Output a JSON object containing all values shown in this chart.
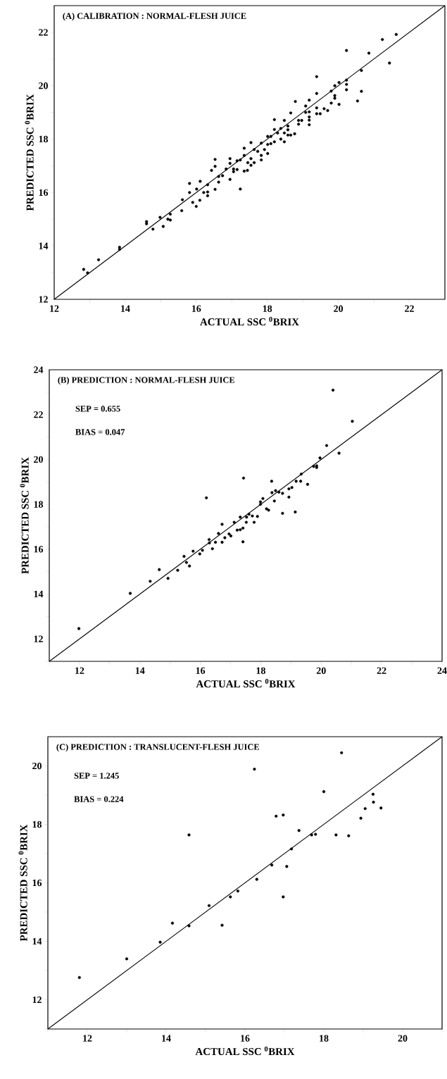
{
  "chart_data": [
    {
      "type": "scatter",
      "title": "(A) CALIBRATION : NORMAL-FLESH JUICE",
      "xlabel": "ACTUAL SSC $^{0}$BRIX",
      "ylabel": "PREDICTED SSC $^{0}$BRIX",
      "marker": "circle",
      "xlim": [
        12,
        23
      ],
      "ylim": [
        12,
        23
      ],
      "xticks": [
        12,
        {
          "value": 13,
          "label": null
        },
        14,
        {
          "value": 15,
          "label": null
        },
        16,
        {
          "value": 17,
          "label": null
        },
        18,
        {
          "value": 19,
          "label": null
        },
        20,
        {
          "value": 21,
          "label": null
        },
        22
      ],
      "yticks": [
        12,
        {
          "value": 13,
          "label": null
        },
        14,
        {
          "value": 15,
          "label": null
        },
        16,
        {
          "value": 17,
          "label": null
        },
        18,
        {
          "value": 19,
          "label": null
        },
        20,
        {
          "value": 21,
          "label": null
        },
        22
      ],
      "series": [
        {
          "color": "#000000",
          "x": [
            12.83,
            12.94,
            13.25,
            13.84,
            13.84,
            14.6,
            14.6,
            14.78,
            14.98,
            15.07,
            15.2,
            15.27,
            15.27,
            15.59,
            15.61,
            15.81,
            15.81,
            15.9,
            16.0,
            16.01,
            16.1,
            16.11,
            16.21,
            16.32,
            16.32,
            16.32,
            16.43,
            16.53,
            16.53,
            16.53,
            16.63,
            16.63,
            16.74,
            16.84,
            16.95,
            16.95,
            16.95,
            17.05,
            17.05,
            17.15,
            17.15,
            17.24,
            17.24,
            17.35,
            17.35,
            17.35,
            17.44,
            17.45,
            17.54,
            17.54,
            17.54,
            17.63,
            17.63,
            17.73,
            17.83,
            17.83,
            17.83,
            17.92,
            18.01,
            18.01,
            18.01,
            18.1,
            18.1,
            18.2,
            18.2,
            18.2,
            18.29,
            18.38,
            18.38,
            18.48,
            18.48,
            18.48,
            18.58,
            18.58,
            18.58,
            18.66,
            18.66,
            18.77,
            18.79,
            18.88,
            18.88,
            18.97,
            19.08,
            19.08,
            19.18,
            19.18,
            19.18,
            19.18,
            19.18,
            19.39,
            19.39,
            19.39,
            19.39,
            19.49,
            19.6,
            19.7,
            19.8,
            19.8,
            19.9,
            19.9,
            19.9,
            20.02,
            20.02,
            20.23,
            20.23,
            20.23,
            20.23,
            20.54,
            20.65,
            20.65,
            20.86,
            21.24,
            21.44,
            21.63
          ],
          "values": [
            13.12,
            12.99,
            13.48,
            13.95,
            13.87,
            14.91,
            14.83,
            14.63,
            15.07,
            14.73,
            15.0,
            14.97,
            15.19,
            15.32,
            15.73,
            16.0,
            16.34,
            15.63,
            15.48,
            16.13,
            15.71,
            16.42,
            16.0,
            16.02,
            15.88,
            16.29,
            16.83,
            16.98,
            17.24,
            16.12,
            16.39,
            16.6,
            16.63,
            16.88,
            17.27,
            17.09,
            16.49,
            16.78,
            16.88,
            16.86,
            17.19,
            17.22,
            16.13,
            17.39,
            17.66,
            16.8,
            16.83,
            17.12,
            17.87,
            17.27,
            17.02,
            17.61,
            17.12,
            17.54,
            17.85,
            17.39,
            17.22,
            17.61,
            17.8,
            18.1,
            17.46,
            18.1,
            17.83,
            18.73,
            18.36,
            17.9,
            18.23,
            18.4,
            18.0,
            18.7,
            18.23,
            17.9,
            18.49,
            18.35,
            18.15,
            18.98,
            18.15,
            18.2,
            19.41,
            18.56,
            18.7,
            18.7,
            19.24,
            19.0,
            19.46,
            19.02,
            18.83,
            18.71,
            18.54,
            20.34,
            19.71,
            19.17,
            18.95,
            18.95,
            19.14,
            19.07,
            19.35,
            19.8,
            20.0,
            19.63,
            19.53,
            20.12,
            19.3,
            21.32,
            20.21,
            20.05,
            19.85,
            19.43,
            20.57,
            19.79,
            21.22,
            21.73,
            20.85,
            21.92
          ]
        },
        {
          "type": "line",
          "color": "#000000",
          "x": [
            12,
            23
          ],
          "values": [
            12,
            23
          ],
          "marker": "none"
        }
      ]
    },
    {
      "type": "scatter",
      "title": "(B)  PREDICTION : NORMAL-FLESH JUICE",
      "xlabel": "ACTUAL SSC $^{0}$BRIX",
      "ylabel": "PREDICTED SSC $^{0}$BRIX",
      "marker": "circle",
      "annotations": [
        "SEP = 0.655",
        "BIAS = 0.047"
      ],
      "xlim": [
        11,
        24
      ],
      "ylim": [
        11,
        24
      ],
      "xticks": [
        {
          "value": 11,
          "label": null
        },
        12,
        {
          "value": 13,
          "label": null
        },
        14,
        {
          "value": 15,
          "label": null
        },
        16,
        {
          "value": 17,
          "label": null
        },
        18,
        {
          "value": 19,
          "label": null
        },
        20,
        {
          "value": 21,
          "label": null
        },
        22,
        {
          "value": 23,
          "label": null
        },
        24
      ],
      "yticks": [
        {
          "value": 11,
          "label": null
        },
        12,
        {
          "value": 13,
          "label": null
        },
        14,
        {
          "value": 15,
          "label": null
        },
        16,
        {
          "value": 17,
          "label": null
        },
        18,
        {
          "value": 19,
          "label": null
        },
        20,
        {
          "value": 21,
          "label": null
        },
        22,
        {
          "value": 23,
          "label": null
        },
        24
      ],
      "series": [
        {
          "color": "#000000",
          "x": [
            11.98,
            13.68,
            14.34,
            14.64,
            14.93,
            15.25,
            15.46,
            15.54,
            15.64,
            15.76,
            15.98,
            16.07,
            16.2,
            16.29,
            16.3,
            16.4,
            16.5,
            16.6,
            16.72,
            16.72,
            16.81,
            16.95,
            17.01,
            17.12,
            17.22,
            17.32,
            17.32,
            17.41,
            17.41,
            17.43,
            17.52,
            17.53,
            17.61,
            17.72,
            17.78,
            17.89,
            17.99,
            17.99,
            18.07,
            18.19,
            18.26,
            18.36,
            18.37,
            18.45,
            18.49,
            18.6,
            18.72,
            18.72,
            18.93,
            18.93,
            19.03,
            19.14,
            19.17,
            19.32,
            19.34,
            19.55,
            19.75,
            19.85,
            19.85,
            19.96,
            20.18,
            20.39,
            20.59,
            21.03
          ],
          "values": [
            12.46,
            14.03,
            14.57,
            15.09,
            14.7,
            15.06,
            15.68,
            15.41,
            15.25,
            15.91,
            15.79,
            15.95,
            18.29,
            16.43,
            16.28,
            16.02,
            16.31,
            16.7,
            17.11,
            16.31,
            16.51,
            16.68,
            16.59,
            17.2,
            16.85,
            17.43,
            16.87,
            16.94,
            16.33,
            19.17,
            17.2,
            17.43,
            17.56,
            17.48,
            17.2,
            17.46,
            18.0,
            18.11,
            18.26,
            17.8,
            17.74,
            19.03,
            18.52,
            18.15,
            18.61,
            18.54,
            18.49,
            17.6,
            18.69,
            18.32,
            18.75,
            17.66,
            19.03,
            19.03,
            19.35,
            18.89,
            19.69,
            19.72,
            19.64,
            20.07,
            20.62,
            23.09,
            20.28,
            21.7
          ]
        },
        {
          "type": "line",
          "color": "#000000",
          "x": [
            11,
            24
          ],
          "values": [
            11,
            24
          ],
          "marker": "none"
        }
      ]
    },
    {
      "type": "scatter",
      "title": "(C)  PREDICTION : TRANSLUCENT-FLESH JUICE",
      "xlabel": "ACTUAL SSC $^{0}$BRIX",
      "ylabel": "PREDICTED SSC $^{0}$BRIX",
      "marker": "circle",
      "annotations": [
        "SEP = 1.245",
        "BIAS = 0.224"
      ],
      "xlim": [
        11,
        21
      ],
      "ylim": [
        11,
        21
      ],
      "xticks": [
        {
          "value": 11,
          "label": null
        },
        12,
        {
          "value": 13,
          "label": null
        },
        14,
        {
          "value": 15,
          "label": null
        },
        16,
        {
          "value": 17,
          "label": null
        },
        18,
        {
          "value": 19,
          "label": null
        },
        20,
        {
          "value": 21,
          "label": null
        }
      ],
      "yticks": [
        {
          "value": 11,
          "label": null
        },
        12,
        {
          "value": 13,
          "label": null
        },
        14,
        {
          "value": 15,
          "label": null
        },
        16,
        {
          "value": 17,
          "label": null
        },
        18,
        {
          "value": 19,
          "label": null
        },
        20
      ],
      "series": [
        {
          "color": "#000000",
          "x": [
            11.8,
            13.0,
            13.85,
            14.16,
            14.58,
            14.58,
            15.09,
            15.42,
            15.63,
            15.82,
            16.24,
            16.3,
            16.68,
            16.79,
            16.97,
            16.97,
            17.06,
            17.18,
            17.37,
            17.69,
            17.79,
            18.0,
            18.31,
            18.45,
            18.63,
            18.94,
            19.05,
            19.25,
            19.26,
            19.45
          ],
          "values": [
            12.76,
            13.4,
            13.97,
            14.62,
            17.64,
            14.53,
            15.22,
            14.55,
            15.52,
            15.72,
            19.89,
            16.12,
            16.61,
            18.28,
            18.32,
            15.52,
            16.56,
            17.16,
            17.79,
            17.64,
            17.66,
            19.12,
            17.64,
            20.45,
            17.61,
            18.21,
            18.54,
            19.03,
            18.76,
            18.56
          ]
        },
        {
          "type": "line",
          "color": "#000000",
          "x": [
            11,
            21
          ],
          "values": [
            11,
            21
          ],
          "marker": "none"
        }
      ]
    }
  ]
}
